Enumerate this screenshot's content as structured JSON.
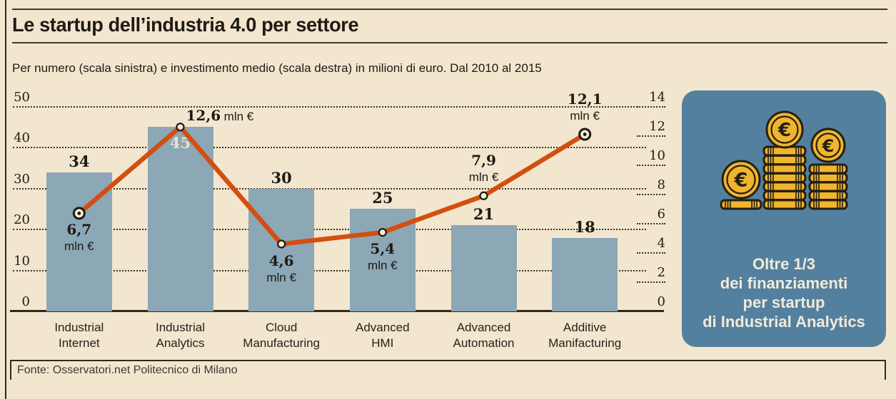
{
  "header": {
    "title": "Le startup dell’industria 4.0 per settore",
    "subtitle": "Per numero (scala sinistra) e investimento medio (scala destra) in milioni di euro. Dal 2010 al 2015"
  },
  "chart_data": {
    "type": "bar+line combo",
    "categories": [
      "Industrial Internet",
      "Industrial Analytics",
      "Cloud Manufacturing",
      "Advanced HMI",
      "Advanced Automation",
      "Additive Manifacturing"
    ],
    "category_label_lines": [
      [
        "Industrial",
        "Internet"
      ],
      [
        "Industrial",
        "Analytics"
      ],
      [
        "Cloud",
        "Manufacturing"
      ],
      [
        "Advanced",
        "HMI"
      ],
      [
        "Advanced",
        "Automation"
      ],
      [
        "Additive",
        "Manifacturing"
      ]
    ],
    "series": [
      {
        "name": "Numero (scala sinistra)",
        "type": "bar",
        "axis": "left",
        "values": [
          34,
          45,
          30,
          25,
          21,
          18
        ],
        "color": "#8ca7b6"
      },
      {
        "name": "Investimento medio (scala destra)",
        "type": "line",
        "axis": "right",
        "values": [
          6.7,
          12.6,
          4.6,
          5.4,
          7.9,
          12.1
        ],
        "value_labels": [
          "6,7",
          "12,6",
          "4,6",
          "5,4",
          "7,9",
          "12,1"
        ],
        "unit": "mln €",
        "color": "#d24f10"
      }
    ],
    "left_axis": {
      "range": [
        0,
        50
      ],
      "ticks": [
        50,
        40,
        30,
        20,
        10,
        0
      ]
    },
    "right_axis": {
      "range": [
        0,
        14
      ],
      "ticks": [
        14,
        12,
        10,
        8,
        6,
        4,
        2,
        0
      ]
    },
    "grid": {
      "style": "dotted",
      "orientation": "horizontal"
    },
    "legend": "none",
    "layout": {
      "bar_label_pos": [
        "above",
        "inside",
        "above",
        "above",
        "above",
        "above"
      ],
      "value_label_pos": [
        "below",
        "right",
        "below",
        "below",
        "above",
        "above"
      ],
      "marker_style": [
        "bullseye",
        "circle",
        "circle",
        "circle",
        "circle",
        "bullseye"
      ]
    }
  },
  "panel": {
    "icon": "euro-coins-stacks-icon",
    "coin_symbol": "€",
    "text_lines": [
      "Oltre 1/3",
      "dei finanziamenti",
      "per startup",
      "di Industrial Analytics"
    ],
    "bg_color": "#54809f",
    "text_color": "#f2ead8",
    "coin_color": "#f0b52c"
  },
  "footer": {
    "source": "Fonte: Osservatori.net Politecnico di Milano"
  },
  "theme": {
    "background": "#f3e6cf",
    "bar": "#8ca7b6",
    "line": "#d24f10",
    "text": "#1e1a14",
    "grid": "#37322a"
  }
}
